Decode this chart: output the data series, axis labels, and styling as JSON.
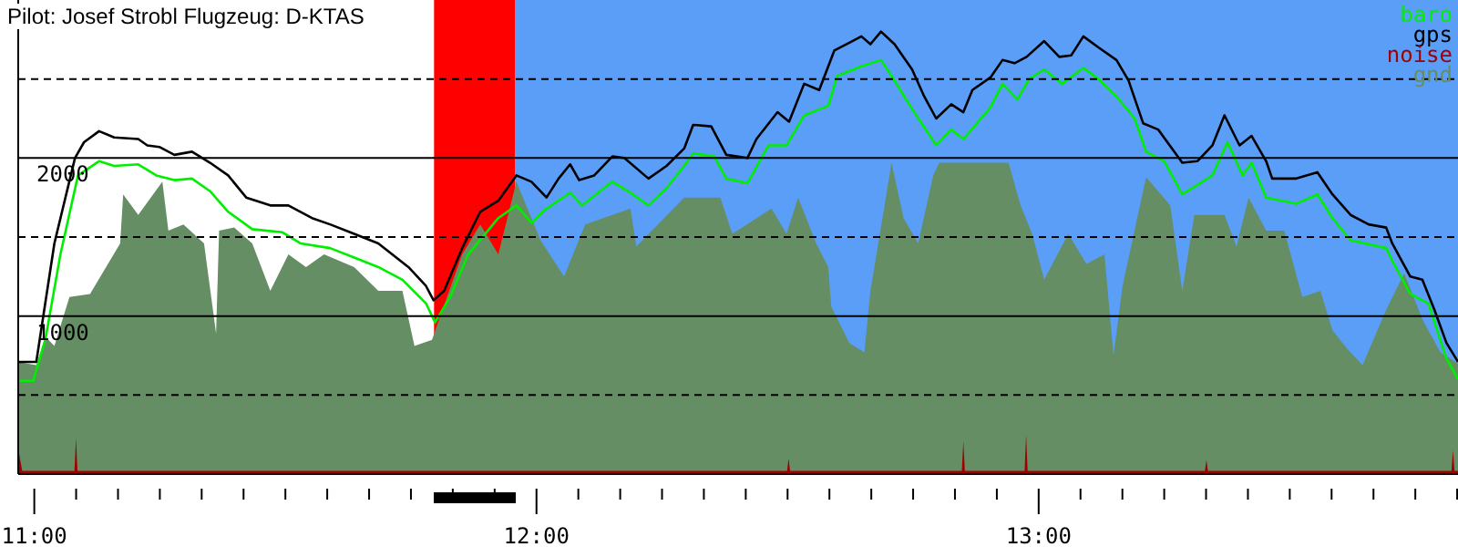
{
  "chart_data": {
    "type": "line",
    "title": "Pilot: Josef Strobl Flugzeug: D-KTAS",
    "xlim": [
      10.968,
      13.835
    ],
    "ylim": [
      0,
      3000
    ],
    "xticks": [
      {
        "value": 11,
        "label": "11:00"
      },
      {
        "value": 11.0833,
        "label": null
      },
      {
        "value": 11.1667,
        "label": null
      },
      {
        "value": 11.25,
        "label": null
      },
      {
        "value": 11.3333,
        "label": null
      },
      {
        "value": 11.4167,
        "label": null
      },
      {
        "value": 11.5,
        "label": null
      },
      {
        "value": 11.5833,
        "label": null
      },
      {
        "value": 11.6667,
        "label": null
      },
      {
        "value": 11.75,
        "label": null
      },
      {
        "value": 11.8333,
        "label": null
      },
      {
        "value": 11.9167,
        "label": null
      },
      {
        "value": 12,
        "label": "12:00"
      },
      {
        "value": 12.0833,
        "label": null
      },
      {
        "value": 12.1667,
        "label": null
      },
      {
        "value": 12.25,
        "label": null
      },
      {
        "value": 12.3333,
        "label": null
      },
      {
        "value": 12.4167,
        "label": null
      },
      {
        "value": 12.5,
        "label": null
      },
      {
        "value": 12.5833,
        "label": null
      },
      {
        "value": 12.6667,
        "label": null
      },
      {
        "value": 12.75,
        "label": null
      },
      {
        "value": 12.8333,
        "label": null
      },
      {
        "value": 12.9167,
        "label": null
      },
      {
        "value": 13,
        "label": "13:00"
      },
      {
        "value": 13.0833,
        "label": null
      },
      {
        "value": 13.1667,
        "label": null
      },
      {
        "value": 13.25,
        "label": null
      },
      {
        "value": 13.3333,
        "label": null
      },
      {
        "value": 13.4167,
        "label": null
      },
      {
        "value": 13.5,
        "label": null
      },
      {
        "value": 13.5833,
        "label": null
      },
      {
        "value": 13.6667,
        "label": null
      },
      {
        "value": 13.75,
        "label": null
      },
      {
        "value": 13.8333,
        "label": null
      }
    ],
    "yticks": [
      {
        "value": 500,
        "label": null
      },
      1000,
      {
        "value": 1500,
        "label": null
      },
      2000,
      {
        "value": 2500,
        "label": null
      }
    ],
    "grid": "y",
    "legend": "top right",
    "bands": [
      {
        "axis": "x",
        "from": 11.796,
        "to": 11.957,
        "color": "#ff0000"
      },
      {
        "axis": "x",
        "from": 11.957,
        "to": 13.835,
        "color": "#5a9ef8"
      }
    ],
    "series": [
      {
        "name": "baro",
        "color": "#00ee00",
        "x": [
          10.968,
          10.998,
          11.022,
          11.052,
          11.087,
          11.129,
          11.159,
          11.207,
          11.243,
          11.279,
          11.314,
          11.35,
          11.386,
          11.434,
          11.494,
          11.53,
          11.589,
          11.637,
          11.685,
          11.733,
          11.78,
          11.798,
          11.828,
          11.864,
          11.924,
          11.96,
          11.99,
          12.02,
          12.067,
          12.091,
          12.151,
          12.187,
          12.223,
          12.259,
          12.294,
          12.312,
          12.354,
          12.378,
          12.42,
          12.462,
          12.498,
          12.533,
          12.581,
          12.599,
          12.647,
          12.686,
          12.707,
          12.748,
          12.796,
          12.826,
          12.85,
          12.904,
          12.928,
          12.958,
          12.981,
          13.011,
          13.047,
          13.089,
          13.119,
          13.155,
          13.191,
          13.214,
          13.25,
          13.286,
          13.316,
          13.346,
          13.376,
          13.406,
          13.424,
          13.453,
          13.513,
          13.555,
          13.585,
          13.621,
          13.692,
          13.704,
          13.74,
          13.776,
          13.812,
          13.835
        ],
        "values": [
          590,
          590,
          850,
          1390,
          1890,
          1980,
          1950,
          1960,
          1890,
          1860,
          1870,
          1790,
          1660,
          1550,
          1530,
          1460,
          1430,
          1370,
          1310,
          1230,
          1080,
          960,
          1120,
          1390,
          1620,
          1700,
          1590,
          1680,
          1780,
          1700,
          1850,
          1780,
          1700,
          1810,
          1950,
          2030,
          2010,
          1870,
          1840,
          2080,
          2080,
          2270,
          2330,
          2520,
          2580,
          2620,
          2520,
          2310,
          2080,
          2180,
          2120,
          2320,
          2470,
          2370,
          2500,
          2560,
          2470,
          2570,
          2500,
          2390,
          2250,
          2040,
          1980,
          1770,
          1830,
          1890,
          2100,
          1890,
          1970,
          1750,
          1710,
          1770,
          1620,
          1480,
          1430,
          1350,
          1140,
          1080,
          730,
          600
        ]
      },
      {
        "name": "gps",
        "color": "#000000",
        "x": [
          10.968,
          11.004,
          11.04,
          11.081,
          11.099,
          11.129,
          11.159,
          11.207,
          11.225,
          11.249,
          11.279,
          11.314,
          11.35,
          11.386,
          11.422,
          11.47,
          11.506,
          11.553,
          11.589,
          11.637,
          11.685,
          11.745,
          11.78,
          11.795,
          11.816,
          11.852,
          11.888,
          11.924,
          11.96,
          11.99,
          12.02,
          12.044,
          12.067,
          12.085,
          12.115,
          12.151,
          12.175,
          12.223,
          12.259,
          12.294,
          12.312,
          12.348,
          12.378,
          12.42,
          12.438,
          12.48,
          12.503,
          12.533,
          12.563,
          12.593,
          12.623,
          12.647,
          12.665,
          12.686,
          12.713,
          12.748,
          12.772,
          12.796,
          12.826,
          12.85,
          12.868,
          12.904,
          12.928,
          12.952,
          12.976,
          13.011,
          13.041,
          13.065,
          13.089,
          13.119,
          13.155,
          13.179,
          13.208,
          13.238,
          13.286,
          13.316,
          13.346,
          13.37,
          13.4,
          13.424,
          13.453,
          13.465,
          13.513,
          13.555,
          13.585,
          13.621,
          13.657,
          13.692,
          13.704,
          13.74,
          13.764,
          13.788,
          13.812,
          13.835
        ],
        "values": [
          710,
          710,
          1460,
          2000,
          2100,
          2170,
          2130,
          2120,
          2080,
          2070,
          2020,
          2040,
          1970,
          1890,
          1750,
          1700,
          1700,
          1620,
          1580,
          1520,
          1460,
          1310,
          1190,
          1100,
          1160,
          1430,
          1660,
          1730,
          1890,
          1850,
          1750,
          1870,
          1960,
          1860,
          1890,
          2010,
          2000,
          1870,
          1950,
          2060,
          2210,
          2200,
          2020,
          2000,
          2120,
          2290,
          2230,
          2470,
          2430,
          2680,
          2730,
          2770,
          2720,
          2800,
          2720,
          2560,
          2390,
          2250,
          2340,
          2290,
          2430,
          2510,
          2620,
          2600,
          2640,
          2740,
          2640,
          2650,
          2770,
          2700,
          2620,
          2490,
          2220,
          2180,
          1970,
          1980,
          2080,
          2270,
          2080,
          2140,
          1980,
          1870,
          1870,
          1910,
          1770,
          1640,
          1580,
          1560,
          1460,
          1250,
          1230,
          1040,
          830,
          710
        ]
      },
      {
        "name": "noise",
        "type": "area",
        "color": "#a00000",
        "x": [
          10.968,
          10.976,
          11.08,
          11.083,
          11.086,
          12.499,
          12.502,
          12.505,
          12.847,
          12.85,
          12.853,
          12.972,
          12.975,
          12.978,
          13.331,
          13.334,
          13.337,
          13.822,
          13.825,
          13.828,
          13.835
        ],
        "values": [
          160,
          20,
          20,
          230,
          20,
          20,
          100,
          20,
          20,
          210,
          20,
          20,
          250,
          20,
          20,
          90,
          20,
          20,
          150,
          20,
          20
        ]
      },
      {
        "name": "gnd",
        "type": "area",
        "color": "#658e65",
        "x": [
          10.968,
          11.004,
          11.022,
          11.04,
          11.07,
          11.111,
          11.171,
          11.177,
          11.207,
          11.255,
          11.267,
          11.297,
          11.338,
          11.362,
          11.368,
          11.398,
          11.434,
          11.47,
          11.506,
          11.541,
          11.577,
          11.637,
          11.685,
          11.733,
          11.757,
          11.792,
          11.804,
          11.852,
          11.888,
          11.924,
          11.96,
          12.008,
          12.055,
          12.097,
          12.187,
          12.199,
          12.294,
          12.366,
          12.39,
          12.468,
          12.498,
          12.521,
          12.557,
          12.581,
          12.587,
          12.623,
          12.653,
          12.665,
          12.689,
          12.707,
          12.731,
          12.76,
          12.79,
          12.802,
          12.904,
          12.94,
          12.964,
          12.987,
          13.011,
          13.059,
          13.095,
          13.131,
          13.149,
          13.167,
          13.214,
          13.262,
          13.286,
          13.31,
          13.37,
          13.394,
          13.418,
          13.453,
          13.489,
          13.525,
          13.561,
          13.585,
          13.615,
          13.645,
          13.692,
          13.728,
          13.764,
          13.8,
          13.835
        ],
        "values": [
          710,
          690,
          870,
          810,
          1120,
          1140,
          1460,
          1770,
          1640,
          1850,
          1540,
          1580,
          1460,
          890,
          1540,
          1560,
          1460,
          1160,
          1390,
          1310,
          1390,
          1310,
          1160,
          1160,
          810,
          850,
          960,
          1390,
          1580,
          1390,
          1850,
          1480,
          1250,
          1580,
          1680,
          1440,
          1750,
          1750,
          1520,
          1680,
          1520,
          1750,
          1460,
          1310,
          1060,
          830,
          770,
          1160,
          1620,
          1970,
          1620,
          1460,
          1890,
          1970,
          1970,
          1970,
          1700,
          1520,
          1230,
          1520,
          1330,
          1390,
          750,
          1190,
          1880,
          1700,
          1160,
          1640,
          1640,
          1440,
          1750,
          1540,
          1540,
          1120,
          1160,
          910,
          790,
          690,
          1040,
          1270,
          980,
          770,
          700
        ]
      }
    ]
  }
}
